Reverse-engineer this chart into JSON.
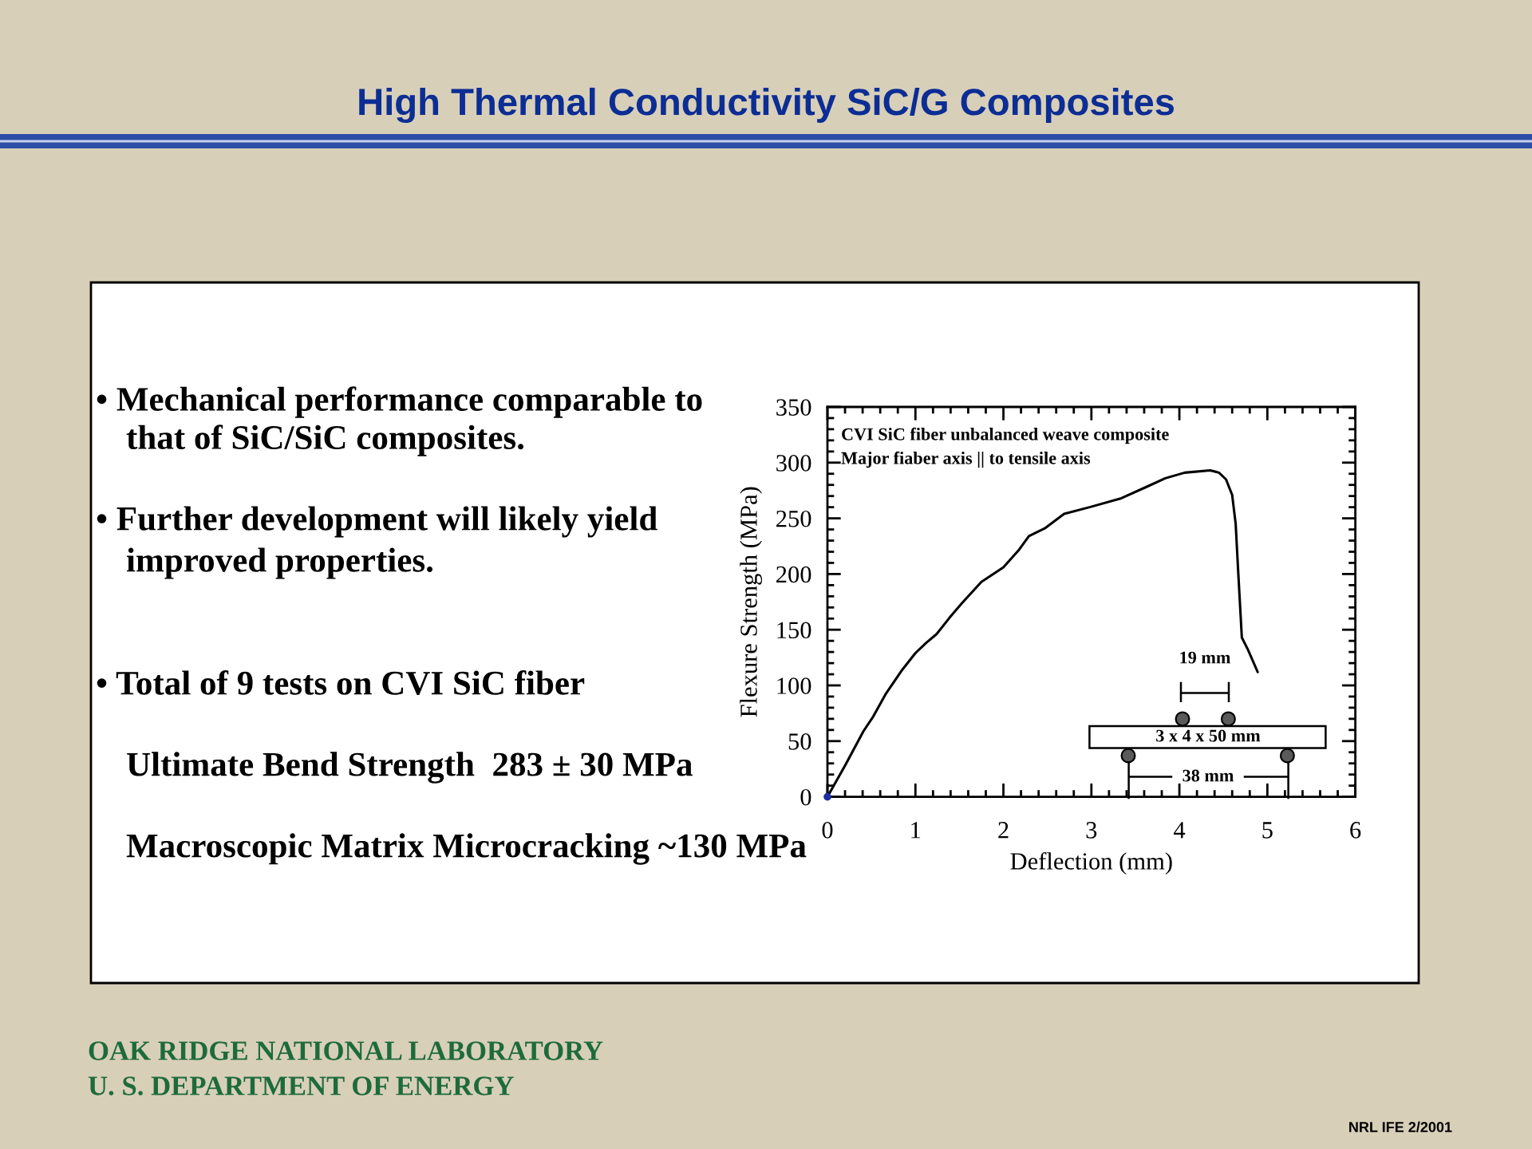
{
  "chart_data": {
    "type": "line",
    "title": "High Thermal Conductivity SiC/G Composites",
    "xlabel": "Deflection (mm)",
    "ylabel": "Flexure Strength (MPa)",
    "series": [
      {
        "color": "#000000",
        "x": [
          0,
          0.2,
          0.41,
          0.52,
          0.66,
          0.85,
          1.0,
          1.12,
          1.24,
          1.39,
          1.53,
          1.75,
          2.0,
          2.18,
          2.29,
          2.47,
          2.69,
          2.98,
          3.34,
          3.62,
          3.84,
          4.06,
          4.35,
          4.45,
          4.53,
          4.6,
          4.64,
          4.67,
          4.71,
          4.78,
          4.89
        ],
        "values": [
          0,
          28,
          59,
          72,
          92,
          114,
          129,
          138,
          146,
          161,
          174,
          193,
          206,
          222,
          234,
          241,
          254,
          260,
          268,
          278,
          286,
          291,
          293,
          291,
          285,
          271,
          245,
          200,
          143,
          132,
          112
        ]
      },
      {
        "type": "scatter",
        "color": "#1c2fa0",
        "marker": "circle",
        "x": [
          0
        ],
        "values": [
          0
        ]
      }
    ],
    "xlim": [
      0,
      6
    ],
    "ylim": [
      0,
      350
    ],
    "xticks": [
      0,
      {
        "value": 0.2,
        "label": null
      },
      {
        "value": 0.4,
        "label": null
      },
      {
        "value": 0.6,
        "label": null
      },
      {
        "value": 0.8,
        "label": null
      },
      1,
      {
        "value": 1.2,
        "label": null
      },
      {
        "value": 1.4,
        "label": null
      },
      {
        "value": 1.6,
        "label": null
      },
      {
        "value": 1.8,
        "label": null
      },
      2,
      {
        "value": 2.2,
        "label": null
      },
      {
        "value": 2.4,
        "label": null
      },
      {
        "value": 2.6,
        "label": null
      },
      {
        "value": 2.8,
        "label": null
      },
      3,
      {
        "value": 3.2,
        "label": null
      },
      {
        "value": 3.4,
        "label": null
      },
      {
        "value": 3.6,
        "label": null
      },
      {
        "value": 3.8,
        "label": null
      },
      4,
      {
        "value": 4.2,
        "label": null
      },
      {
        "value": 4.4,
        "label": null
      },
      {
        "value": 4.6,
        "label": null
      },
      {
        "value": 4.8,
        "label": null
      },
      5,
      {
        "value": 5.2,
        "label": null
      },
      {
        "value": 5.4,
        "label": null
      },
      {
        "value": 5.6,
        "label": null
      },
      {
        "value": 5.8,
        "label": null
      },
      6
    ],
    "yticks": [
      0,
      {
        "value": 10,
        "label": null
      },
      {
        "value": 20,
        "label": null
      },
      {
        "value": 30,
        "label": null
      },
      {
        "value": 40,
        "label": null
      },
      50,
      {
        "value": 60,
        "label": null
      },
      {
        "value": 70,
        "label": null
      },
      {
        "value": 80,
        "label": null
      },
      {
        "value": 90,
        "label": null
      },
      100,
      {
        "value": 110,
        "label": null
      },
      {
        "value": 120,
        "label": null
      },
      {
        "value": 130,
        "label": null
      },
      {
        "value": 140,
        "label": null
      },
      150,
      {
        "value": 160,
        "label": null
      },
      {
        "value": 170,
        "label": null
      },
      {
        "value": 180,
        "label": null
      },
      {
        "value": 190,
        "label": null
      },
      200,
      {
        "value": 210,
        "label": null
      },
      {
        "value": 220,
        "label": null
      },
      {
        "value": 230,
        "label": null
      },
      {
        "value": 240,
        "label": null
      },
      250,
      {
        "value": 260,
        "label": null
      },
      {
        "value": 270,
        "label": null
      },
      {
        "value": 280,
        "label": null
      },
      {
        "value": 290,
        "label": null
      },
      300,
      {
        "value": 310,
        "label": null
      },
      {
        "value": 320,
        "label": null
      },
      {
        "value": 330,
        "label": null
      },
      {
        "value": 340,
        "label": null
      },
      350
    ],
    "annotations": [
      "CVI SiC fiber unbalanced weave composite",
      "Major fiaber axis || to tensile axis",
      "19 mm",
      "3 x 4 x 50 mm",
      "38 mm",
      "• Mechanical performance comparable to",
      "that of SiC/SiC composites.",
      "• Further development will likely yield",
      "improved properties.",
      "• Total of 9 tests on CVI SiC fiber",
      "Ultimate Bend Strength  283 ± 30 MPa",
      "Macroscopic Matrix Microcracking ~130 MPa",
      "OAK RIDGE NATIONAL LABORATORY",
      "U. S. DEPARTMENT OF ENERGY",
      "NRL IFE 2/2001"
    ]
  }
}
